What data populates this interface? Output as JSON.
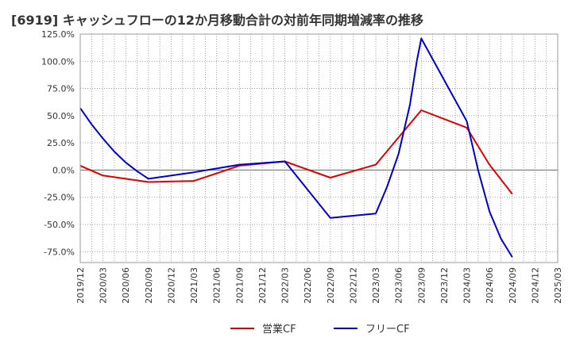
{
  "chart_data": {
    "type": "line",
    "title": "[6919]  キャッシュフローの12か月移動合計の対前年同期増減率の推移",
    "xlabel": "",
    "ylabel": "",
    "ylim": [
      -85,
      125
    ],
    "y_ticks": [
      "125.0%",
      "100.0%",
      "75.0%",
      "50.0%",
      "25.0%",
      "0.0%",
      "-25.0%",
      "-50.0%",
      "-75.0%"
    ],
    "y_tick_values": [
      125,
      100,
      75,
      50,
      25,
      0,
      -25,
      -50,
      -75
    ],
    "categories": [
      "2019/12",
      "2020/03",
      "2020/06",
      "2020/09",
      "2020/12",
      "2021/03",
      "2021/06",
      "2021/09",
      "2021/12",
      "2022/03",
      "2022/06",
      "2022/09",
      "2022/12",
      "2023/03",
      "2023/06",
      "2023/09",
      "2023/12",
      "2024/03",
      "2024/06",
      "2024/09",
      "2024/12",
      "2025/03"
    ],
    "series": [
      {
        "name": "営業CF",
        "color": "#e00000",
        "points": [
          [
            0,
            4
          ],
          [
            1,
            -5
          ],
          [
            3,
            -11
          ],
          [
            5,
            -10
          ],
          [
            7,
            4
          ],
          [
            9,
            8
          ],
          [
            11,
            -7
          ],
          [
            13,
            5
          ],
          [
            15,
            55
          ],
          [
            17,
            39
          ],
          [
            18,
            5
          ],
          [
            19,
            -22
          ]
        ]
      },
      {
        "name": "フリーCF",
        "color": "#0000cc",
        "points": [
          [
            0,
            57
          ],
          [
            0.5,
            42
          ],
          [
            1,
            29
          ],
          [
            1.5,
            17
          ],
          [
            2,
            7
          ],
          [
            2.5,
            -1
          ],
          [
            3,
            -8
          ],
          [
            5,
            -2
          ],
          [
            7,
            5
          ],
          [
            9,
            8
          ],
          [
            10,
            -18
          ],
          [
            11,
            -44
          ],
          [
            13,
            -40
          ],
          [
            13.5,
            -15
          ],
          [
            14,
            15
          ],
          [
            14.5,
            60
          ],
          [
            14.8,
            100
          ],
          [
            15,
            121
          ],
          [
            17,
            45
          ],
          [
            17.5,
            0
          ],
          [
            18,
            -38
          ],
          [
            18.5,
            -63
          ],
          [
            19,
            -80
          ]
        ]
      }
    ],
    "legend": [
      "営業CF",
      "フリーCF"
    ],
    "grid": true
  }
}
